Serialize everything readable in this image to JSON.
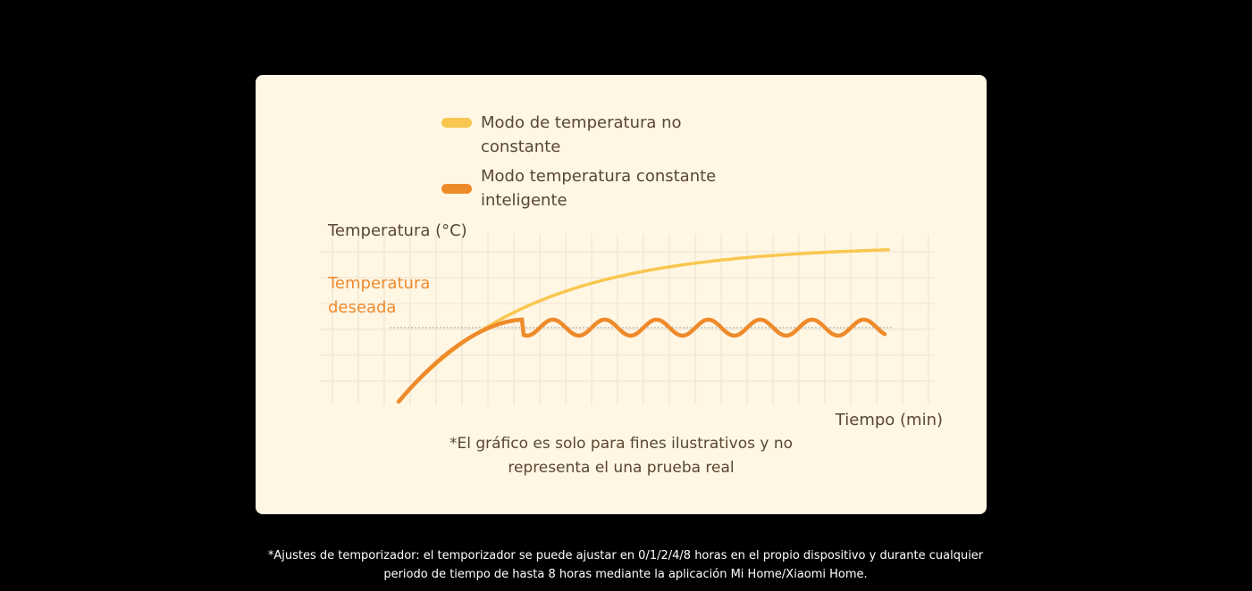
{
  "chart_data": {
    "type": "line",
    "title": "",
    "xlabel": "Tiempo (min)",
    "ylabel": "Temperatura (°C)",
    "target_label": "Temperatura deseada",
    "grid": true,
    "legend_position": "top",
    "note": "*El gráfico es solo para fines ilustrativos y no representa el una prueba real",
    "series": [
      {
        "name": "Modo de temperatura no constante",
        "color": "#f9c74f",
        "style": "rise-to-plateau"
      },
      {
        "name": "Modo temperatura constante inteligente",
        "color": "#ee8a2a",
        "style": "rise-then-oscillate-around-target"
      }
    ]
  },
  "footnote": {
    "line1": "*Ajustes de temporizador: el temporizador se puede ajustar en 0/1/2/4/8 horas en el propio dispositivo y durante cualquier",
    "line2": "periodo de tiempo de hasta 8 horas mediante la aplicación Mi Home/Xiaomi Home."
  }
}
